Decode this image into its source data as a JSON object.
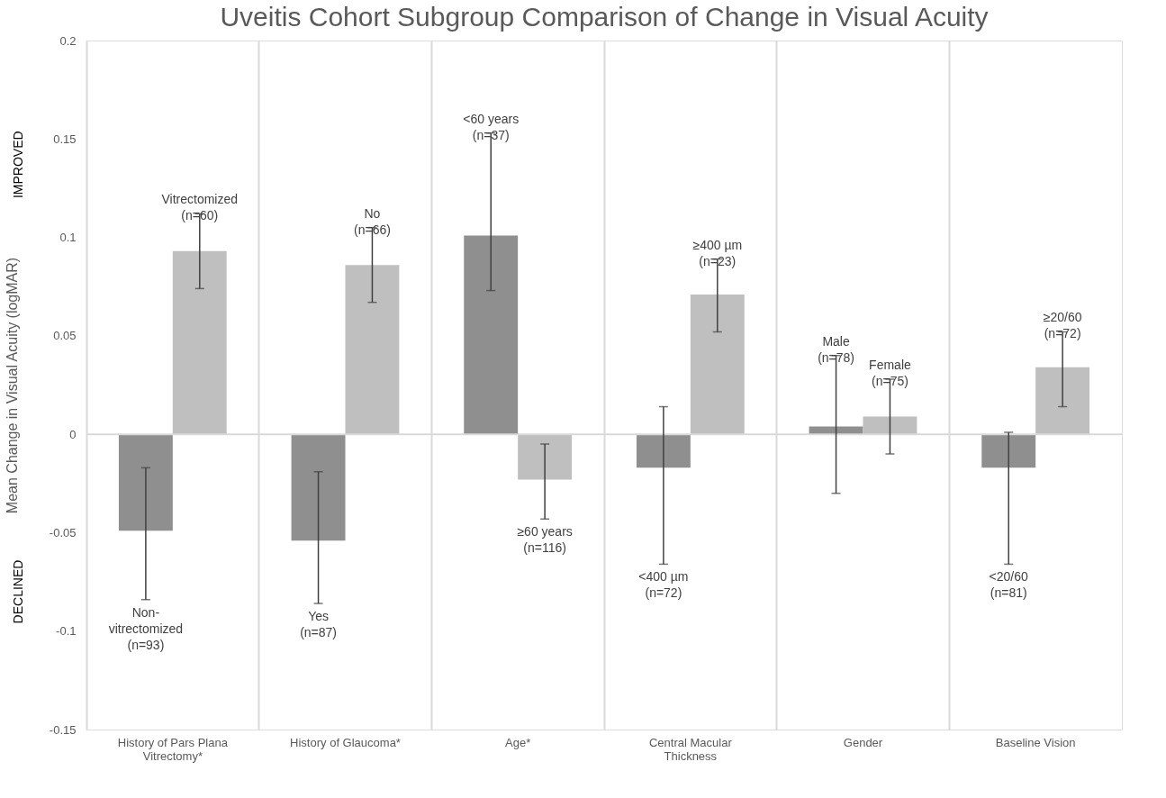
{
  "chart_data": {
    "type": "bar",
    "title": "Uveitis Cohort Subgroup Comparison of Change in Visual Acuity",
    "ylabel": "Mean Change in Visual Acuity (logMAR)",
    "categories": [
      "History of Pars Plana\nVitrectomy*",
      "History of Glaucoma*",
      "Age*",
      "Central Macular\nThickness",
      "Gender",
      "Baseline Vision"
    ],
    "series": [
      {
        "color": "#8f8f8f",
        "values": [
          -0.049,
          -0.054,
          0.101,
          -0.017,
          0.004,
          -0.017
        ],
        "errors": [
          [
            -0.084,
            -0.017
          ],
          [
            -0.086,
            -0.019
          ],
          [
            0.073,
            0.153
          ],
          [
            -0.066,
            0.014
          ],
          [
            -0.03,
            0.04
          ],
          [
            -0.066,
            0.001
          ]
        ]
      },
      {
        "color": "#bfbfbf",
        "values": [
          0.093,
          0.086,
          -0.023,
          0.071,
          0.009,
          0.034
        ],
        "errors": [
          [
            0.074,
            0.112
          ],
          [
            0.067,
            0.105
          ],
          [
            -0.043,
            -0.005
          ],
          [
            0.052,
            0.089
          ],
          [
            -0.01,
            0.028
          ],
          [
            0.014,
            0.052
          ]
        ]
      }
    ],
    "ylim": [
      -0.15,
      0.2
    ],
    "yticks": [
      -0.15,
      -0.1,
      -0.05,
      0,
      0.05,
      0.1,
      0.15,
      0.2
    ],
    "grid": "x",
    "ref_lines": [
      {
        "axis": "y",
        "value": 0,
        "color": "#d9d9d9"
      }
    ],
    "annotations": [
      "Non-\nvitrectomized\n(n=93)",
      "Vitrectomized\n(n=60)",
      "Yes\n(n=87)",
      "No\n(n=66)",
      "<60 years\n(n=37)",
      "≥60 years\n(n=116)",
      "<400 µm\n(n=72)",
      "≥400 µm\n(n=23)",
      "Male\n(n=78)",
      "Female\n(n=75)",
      "<20/60\n(n=81)",
      "≥20/60\n(n=72)",
      "IMPROVED",
      "DECLINED"
    ]
  }
}
